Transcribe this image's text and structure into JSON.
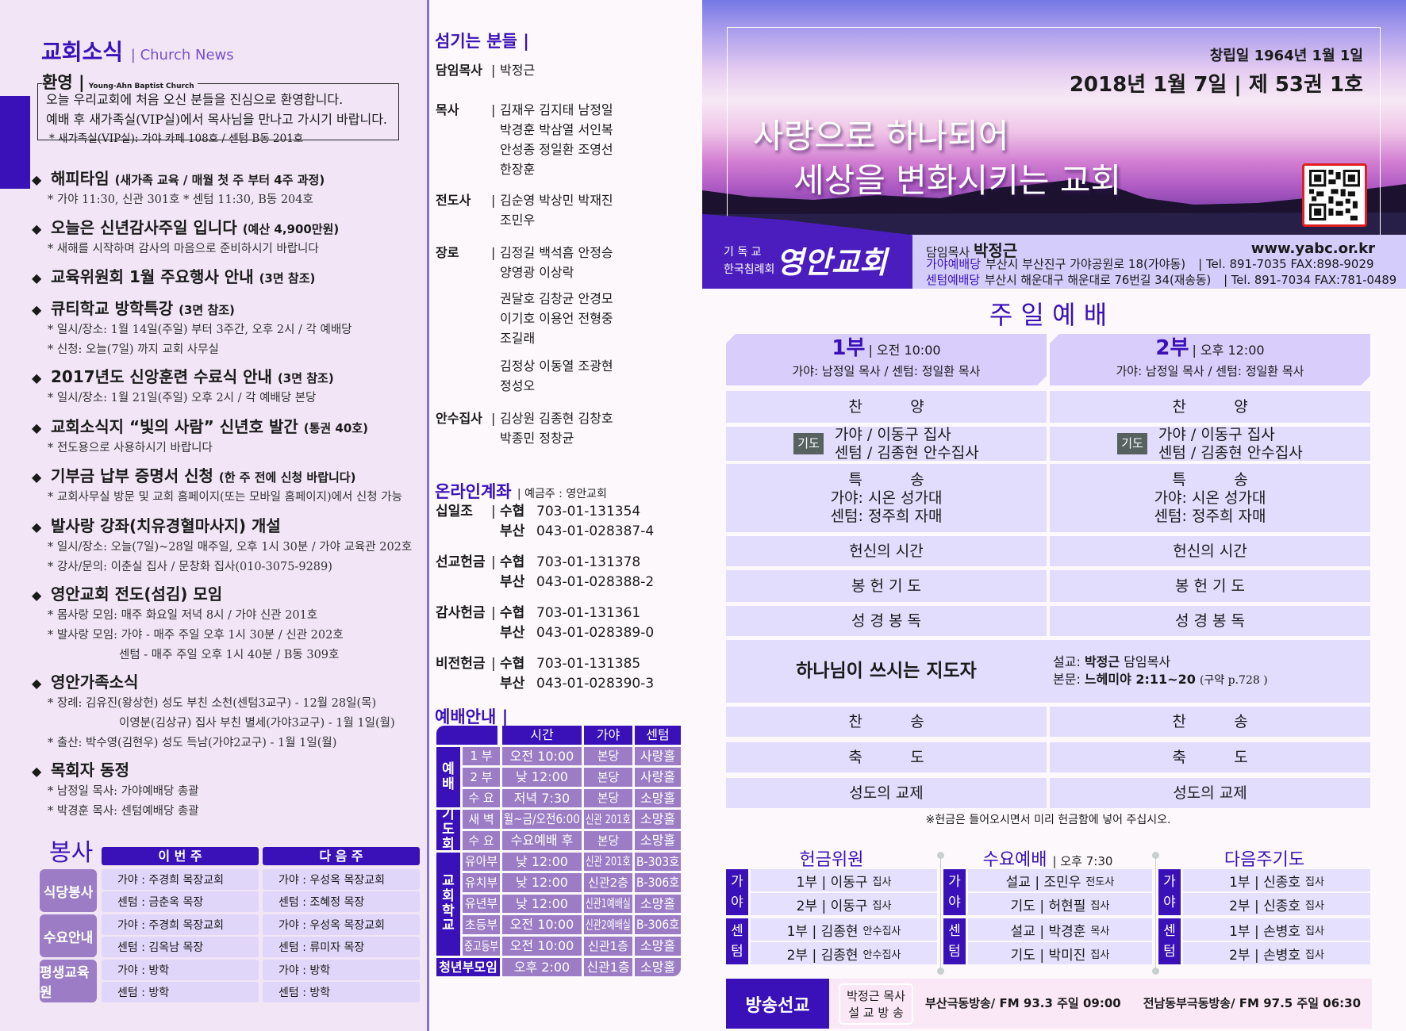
{
  "news": {
    "title": "교회소식",
    "subtitle": "| Church News",
    "welcome": {
      "title": "환영 |",
      "subtitle": "Young-Ahn Baptist Church",
      "lines": [
        "오늘 우리교회에 처음 오신 분들을 진심으로 환영합니다.",
        "예배 후 새가족실(VIP실)에서 목사님을 만나고 가시기 바랍니다."
      ],
      "note": "* 새가족실(VIP실): 가야 카페 108호 / 센텀 B동 201호"
    },
    "items": [
      {
        "title": "해피타임",
        "note": "(새가족 교육 / 매월 첫 주 부터 4주 과정)",
        "lines": [
          {
            "text": "* 가야 11:30, 신관 301호     * 센텀 11:30, B동 204호"
          }
        ]
      },
      {
        "title": "오늘은 신년감사주일 입니다",
        "note": "(예산 4,900만원)",
        "lines": [
          {
            "text": "* 새해를 시작하며 감사의 마음으로 준비하시기 바랍니다"
          }
        ]
      },
      {
        "title": "교육위원회 1월 주요행사 안내",
        "note": "(3면 참조)",
        "lines": []
      },
      {
        "title": "큐티학교 방학특강",
        "note": "(3면 참조)",
        "lines": [
          {
            "text": "* 일시/장소: 1월 14일(주일) 부터 3주간, 오후 2시 / 각 예배당"
          },
          {
            "text": "* 신청: 오늘(7일) 까지 교회 사무실"
          }
        ]
      },
      {
        "title": "2017년도 신앙훈련 수료식 안내",
        "note": "(3면 참조)",
        "lines": [
          {
            "text": "* 일시/장소: 1월 21일(주일) 오후 2시 / 각 예배당 본당"
          }
        ]
      },
      {
        "title": "교회소식지 “빛의 사람” 신년호 발간",
        "note": "(통권 40호)",
        "lines": [
          {
            "text": "* 전도용으로 사용하시기 바랍니다"
          }
        ]
      },
      {
        "title": "기부금 납부 증명서 신청",
        "note": "(한 주 전에 신청 바랍니다)",
        "lines": [
          {
            "text": "* 교회사무실 방문 및 교회 홈페이지(또는 모바일 홈페이지)에서 신청 가능"
          }
        ]
      },
      {
        "title": "발사랑 강좌(치유경혈마사지) 개설",
        "note": "",
        "lines": [
          {
            "text": "* 일시/장소: 오늘(7일)~28일 매주일, 오후 1시 30분 / 가야 교육관 202호"
          },
          {
            "text": "* 강사/문의: 이춘실 집사 / 문창화 집사(010-3075-9289)"
          }
        ]
      },
      {
        "title": "영안교회 전도(섬김) 모임",
        "note": "",
        "lines": [
          {
            "text": "* 몸사랑 모임: 매주 화요일 저녁 8시 / 가야 신관 201호"
          },
          {
            "text": "* 발사랑 모임: 가야 - 매주 주일 오후 1시 30분 / 신관 202호"
          },
          {
            "text": "센텀 - 매주 주일 오후 1시 40분 / B동 309호",
            "continuation": true
          }
        ]
      },
      {
        "title": "영안가족소식",
        "note": "",
        "lines": [
          {
            "text": "* 장례: 김유진(왕상헌) 성도 부친 소천(센텀3교구) - 12월 28일(목)"
          },
          {
            "text": "이영분(김상규) 집사 부친 별세(가야3교구) - 1월 1일(월)",
            "continuation": true
          },
          {
            "text": "* 출산: 박수영(김현우) 성도 득남(가야2교구) - 1월 1일(월)"
          }
        ]
      },
      {
        "title": "목회자 동정",
        "note": "",
        "lines": [
          {
            "text": "* 남정일 목사: 가야예배당 총괄"
          },
          {
            "text": "* 박경훈 목사: 센텀예배당 총괄"
          }
        ]
      }
    ]
  },
  "service_duty": {
    "title": "봉사",
    "headers": [
      "이 번 주",
      "다 음 주"
    ],
    "groups": [
      {
        "label": "식당봉사",
        "rows": [
          [
            "가야 : 주경희 목장교회",
            "가야 : 우성옥 목장교회"
          ],
          [
            "센텀 : 금춘옥 목장",
            "센텀 : 조혜정 목장"
          ]
        ]
      },
      {
        "label": "수요안내",
        "rows": [
          [
            "가야 : 주경희 목장교회",
            "가야 : 우성옥 목장교회"
          ],
          [
            "센텀 : 김옥남 목장",
            "센텀 : 류미자 목장"
          ]
        ]
      },
      {
        "label": "평생교육원",
        "rows": [
          [
            "가야 : 방학",
            "가야 : 방학"
          ],
          [
            "센텀 : 방학",
            "센텀 : 방학"
          ]
        ]
      }
    ]
  },
  "staff": {
    "title": "섬기는 분들 |",
    "groups": [
      {
        "label": "담임목사",
        "names": [
          "박정근"
        ]
      },
      {
        "label": "목사",
        "names": [
          "김재우 김지태 남정일",
          "박경훈 박삼열 서인복",
          "안성종 정일환 조영선",
          "한장훈"
        ]
      },
      {
        "label": "전도사",
        "names": [
          "김순영 박상민 박재진",
          "조민우"
        ]
      },
      {
        "label": "장로",
        "names": [
          "김정길 백석흠 안정승",
          "양영광 이상락"
        ]
      },
      {
        "label": "",
        "names": [
          "권달호 김창균 안경모",
          "이기호 이용언 전형중",
          "조길래"
        ]
      },
      {
        "label": "",
        "names": [
          "김정상 이동열 조광현",
          "정성오"
        ]
      },
      {
        "label": "안수집사",
        "names": [
          "김상원 김종현 김창호",
          "박종민 정창균"
        ]
      }
    ]
  },
  "accounts": {
    "title": "온라인계좌",
    "holder": "| 예금주 : 영안교회",
    "items": [
      {
        "label": "십일조",
        "rows": [
          [
            "수협",
            "703-01-131354"
          ],
          [
            "부산",
            "043-01-028387-4"
          ]
        ]
      },
      {
        "label": "선교헌금",
        "rows": [
          [
            "수협",
            "703-01-131378"
          ],
          [
            "부산",
            "043-01-028388-2"
          ]
        ]
      },
      {
        "label": "감사헌금",
        "rows": [
          [
            "수협",
            "703-01-131361"
          ],
          [
            "부산",
            "043-01-028389-0"
          ]
        ]
      },
      {
        "label": "비전헌금",
        "rows": [
          [
            "수협",
            "703-01-131385"
          ],
          [
            "부산",
            "043-01-028390-3"
          ]
        ]
      }
    ]
  },
  "worship_guide": {
    "title": "예배안내 |",
    "headers": [
      "시간",
      "가야",
      "센텀"
    ],
    "groups": [
      {
        "label": "예배",
        "rows": [
          [
            "1 부",
            "오전 10:00",
            "본당",
            "사랑홀"
          ],
          [
            "2 부",
            "낮 12:00",
            "본당",
            "사랑홀"
          ],
          [
            "수 요",
            "저녁 7:30",
            "본당",
            "소망홀"
          ]
        ]
      },
      {
        "label": "기도회",
        "rows": [
          [
            "새 벽",
            "월~금/오전6:00",
            "신관 201호",
            "소망홀"
          ],
          [
            "수 요",
            "수요예배 후",
            "본당",
            "소망홀"
          ]
        ]
      },
      {
        "label": "교회학교",
        "rows": [
          [
            "유아부",
            "낮 12:00",
            "신관 201호",
            "B-303호"
          ],
          [
            "유치부",
            "낮 12:00",
            "신관2층",
            "B-306호"
          ],
          [
            "유년부",
            "낮 12:00",
            "신관1예배실",
            "소망홀"
          ],
          [
            "초등부",
            "오전 10:00",
            "신관2예배실",
            "B-306호"
          ],
          [
            "중고등부",
            "오전 10:00",
            "신관1층",
            "소망홀"
          ]
        ]
      }
    ],
    "youth": {
      "label": "청년부모임",
      "cells": [
        "오후 2:00",
        "신관1층",
        "소망홀"
      ]
    }
  },
  "hero": {
    "founded": "창립일 1964년  1월  1일",
    "issue": "2018년 1월 7일 | 제 53권 1호",
    "slogan": [
      "사랑으로 하나되어",
      "세상을 변화시키는 교회"
    ],
    "denomination": [
      "기 독 교",
      "한국침례회"
    ],
    "logo": "영안교회",
    "pastor_label": "담임목사",
    "pastor": "박정근",
    "website": "www.yabc.or.kr",
    "branches": [
      {
        "name": "가야예배당",
        "address": "부산시 부산진구 가야공원로 18(가야동)",
        "contact": "| Tel. 891-7035  FAX:898-9029"
      },
      {
        "name": "센텀예배당",
        "address": "부산시 해운대구 해운대로 76번길 34(재송동)",
        "contact": "| Tel. 891-7034  FAX:781-0489"
      }
    ]
  },
  "sunday": {
    "title": "주 일 예 배",
    "services": [
      {
        "part": "1부",
        "time": "| 오전 10:00",
        "leaders": "가야: 남정일 목사 / 센텀: 정일환 목사"
      },
      {
        "part": "2부",
        "time": "| 오후 12:00",
        "leaders": "가야: 남정일 목사 / 센텀: 정일환 목사"
      }
    ],
    "prayer_badge": "기도",
    "order_before": [
      "찬          양",
      "가야 / 이동구 집사\n센텀 / 김종현 안수집사",
      "특          송\n가야: 시온 성가대\n센텀: 정주희 자매",
      "헌신의 시간",
      "봉 헌 기 도",
      "성 경 봉 독"
    ],
    "sermon": {
      "title": "하나님이 쓰시는 지도자",
      "preacher_label": "설교:",
      "preacher": "박정근",
      "preacher_role": "담임목사",
      "text_label": "본문:",
      "text": "느헤미야 2:11~20",
      "page": "(구약 p.728 )"
    },
    "order_after": [
      "찬          송",
      "축          도",
      "성도의 교제"
    ],
    "notice": "※헌금은 들어오시면서 미리 헌금함에 넣어 주십시오."
  },
  "bottom": {
    "boxes": [
      {
        "title": "헌금위원",
        "time": "",
        "groups": [
          {
            "label": "가야",
            "rows": [
              [
                "1부 | 이동구",
                "집사"
              ],
              [
                "2부 | 이동구",
                "집사"
              ]
            ]
          },
          {
            "label": "센텀",
            "rows": [
              [
                "1부 | 김종현",
                "안수집사"
              ],
              [
                "2부 | 김종현",
                "안수집사"
              ]
            ]
          }
        ]
      },
      {
        "title": "수요예배",
        "time": "| 오후 7:30",
        "groups": [
          {
            "label": "가야",
            "rows": [
              [
                "설교 | 조민우",
                "전도사"
              ],
              [
                "기도 | 허현필",
                "집사"
              ]
            ]
          },
          {
            "label": "센텀",
            "rows": [
              [
                "설교 | 박경훈",
                "목사"
              ],
              [
                "기도 | 박미진",
                "집사"
              ]
            ]
          }
        ]
      },
      {
        "title": "다음주기도",
        "time": "",
        "groups": [
          {
            "label": "가야",
            "rows": [
              [
                "1부 | 신종호",
                "집사"
              ],
              [
                "2부 | 신종호",
                "집사"
              ]
            ]
          },
          {
            "label": "센텀",
            "rows": [
              [
                "1부 | 손병호",
                "집사"
              ],
              [
                "2부 | 손병호",
                "집사"
              ]
            ]
          }
        ]
      }
    ],
    "broadcast": {
      "label": "방송선교",
      "sub": [
        "박정근 목사",
        "설 교 방 송"
      ],
      "stations": [
        "부산극동방송/ FM 93.3 주일 09:00",
        "전남동부극동방송/ FM 97.5 주일 06:30"
      ]
    }
  },
  "colors": {
    "accent": "#3a10b8",
    "cell": "#9b7cc5",
    "lavender": "#e2dcfd",
    "left_bg": "#f1e5f6"
  }
}
